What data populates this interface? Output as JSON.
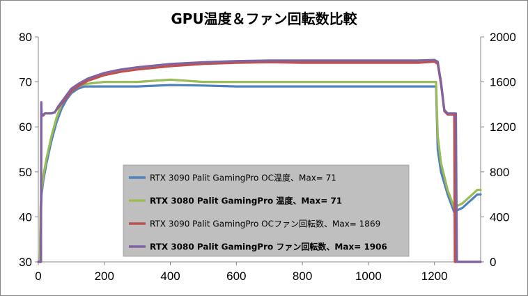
{
  "chart_data": {
    "type": "line",
    "title": "GPU温度＆ファン回転数比較",
    "xlabel": "",
    "ylabel": "",
    "xlim": [
      0,
      1340
    ],
    "ylim": [
      30,
      80
    ],
    "y2lim": [
      0,
      2000
    ],
    "x_ticks": [
      "0",
      "200",
      "400",
      "600",
      "800",
      "1000",
      "1200"
    ],
    "y_ticks": [
      "30",
      "40",
      "50",
      "60",
      "70",
      "80"
    ],
    "y2_ticks": [
      "0",
      "400",
      "800",
      "1200",
      "1600",
      "2000"
    ],
    "grid": false,
    "legend_position": "bottom-center",
    "series": [
      {
        "name": "RTX 3090 Palit GamingPro OC温度、Max= 71",
        "axis": "left",
        "color": "#4f81bd",
        "bold_label": false,
        "points": [
          [
            0,
            30
          ],
          [
            5,
            30
          ],
          [
            7,
            40
          ],
          [
            10,
            45
          ],
          [
            15,
            48
          ],
          [
            25,
            52
          ],
          [
            40,
            57
          ],
          [
            55,
            61
          ],
          [
            70,
            64
          ],
          [
            85,
            66
          ],
          [
            100,
            67.5
          ],
          [
            120,
            68.5
          ],
          [
            140,
            69
          ],
          [
            200,
            69
          ],
          [
            250,
            69
          ],
          [
            300,
            69
          ],
          [
            400,
            69.3
          ],
          [
            500,
            69.2
          ],
          [
            600,
            69
          ],
          [
            800,
            69
          ],
          [
            1000,
            69
          ],
          [
            1100,
            69
          ],
          [
            1190,
            69
          ],
          [
            1200,
            69
          ],
          [
            1205,
            69
          ],
          [
            1210,
            55
          ],
          [
            1220,
            50
          ],
          [
            1240,
            45
          ],
          [
            1260,
            41
          ],
          [
            1270,
            41.5
          ],
          [
            1285,
            42
          ],
          [
            1300,
            43
          ],
          [
            1315,
            44
          ],
          [
            1330,
            45
          ],
          [
            1340,
            45
          ]
        ]
      },
      {
        "name": "RTX 3080 Palit GamingPro 温度、Max= 71",
        "axis": "left",
        "color": "#9bbb59",
        "bold_label": true,
        "points": [
          [
            0,
            30
          ],
          [
            5,
            30
          ],
          [
            7,
            42
          ],
          [
            10,
            46
          ],
          [
            15,
            49
          ],
          [
            25,
            53
          ],
          [
            40,
            58
          ],
          [
            55,
            62
          ],
          [
            70,
            65
          ],
          [
            85,
            67
          ],
          [
            100,
            68
          ],
          [
            120,
            69
          ],
          [
            140,
            69.5
          ],
          [
            200,
            70
          ],
          [
            300,
            70
          ],
          [
            400,
            70.5
          ],
          [
            500,
            70
          ],
          [
            600,
            70
          ],
          [
            800,
            70
          ],
          [
            1000,
            70
          ],
          [
            1100,
            70
          ],
          [
            1190,
            70
          ],
          [
            1200,
            70
          ],
          [
            1205,
            70
          ],
          [
            1210,
            58
          ],
          [
            1220,
            52
          ],
          [
            1240,
            46
          ],
          [
            1260,
            42
          ],
          [
            1270,
            42.5
          ],
          [
            1285,
            43
          ],
          [
            1300,
            44
          ],
          [
            1315,
            45
          ],
          [
            1330,
            46
          ],
          [
            1340,
            46
          ]
        ]
      },
      {
        "name": "RTX 3090 Palit GamingPro OCファン回転数、Max= 1869",
        "axis": "right",
        "color": "#c0504d",
        "bold_label": false,
        "points": [
          [
            0,
            0
          ],
          [
            8,
            0
          ],
          [
            9,
            1400
          ],
          [
            10,
            1300
          ],
          [
            15,
            1300
          ],
          [
            20,
            1320
          ],
          [
            40,
            1320
          ],
          [
            50,
            1330
          ],
          [
            60,
            1370
          ],
          [
            80,
            1440
          ],
          [
            100,
            1520
          ],
          [
            120,
            1560
          ],
          [
            150,
            1610
          ],
          [
            200,
            1660
          ],
          [
            250,
            1690
          ],
          [
            300,
            1710
          ],
          [
            400,
            1740
          ],
          [
            500,
            1760
          ],
          [
            600,
            1770
          ],
          [
            700,
            1775
          ],
          [
            800,
            1770
          ],
          [
            900,
            1770
          ],
          [
            1000,
            1770
          ],
          [
            1100,
            1770
          ],
          [
            1150,
            1770
          ],
          [
            1200,
            1780
          ],
          [
            1210,
            1760
          ],
          [
            1220,
            1580
          ],
          [
            1230,
            1340
          ],
          [
            1240,
            1310
          ],
          [
            1260,
            1310
          ],
          [
            1262,
            0
          ],
          [
            1340,
            0
          ]
        ]
      },
      {
        "name": "RTX 3080 Palit GamingPro ファン回転数、Max= 1906",
        "axis": "right",
        "color": "#8064a2",
        "bold_label": true,
        "points": [
          [
            0,
            0
          ],
          [
            8,
            0
          ],
          [
            9,
            1420
          ],
          [
            10,
            1300
          ],
          [
            15,
            1310
          ],
          [
            20,
            1320
          ],
          [
            40,
            1320
          ],
          [
            50,
            1330
          ],
          [
            60,
            1380
          ],
          [
            80,
            1460
          ],
          [
            100,
            1540
          ],
          [
            120,
            1580
          ],
          [
            150,
            1630
          ],
          [
            200,
            1680
          ],
          [
            250,
            1710
          ],
          [
            300,
            1730
          ],
          [
            400,
            1760
          ],
          [
            500,
            1775
          ],
          [
            600,
            1785
          ],
          [
            700,
            1790
          ],
          [
            800,
            1790
          ],
          [
            900,
            1790
          ],
          [
            1000,
            1790
          ],
          [
            1100,
            1790
          ],
          [
            1150,
            1790
          ],
          [
            1200,
            1795
          ],
          [
            1210,
            1780
          ],
          [
            1220,
            1600
          ],
          [
            1230,
            1350
          ],
          [
            1240,
            1320
          ],
          [
            1265,
            1320
          ],
          [
            1268,
            0
          ],
          [
            1340,
            0
          ]
        ]
      }
    ]
  }
}
